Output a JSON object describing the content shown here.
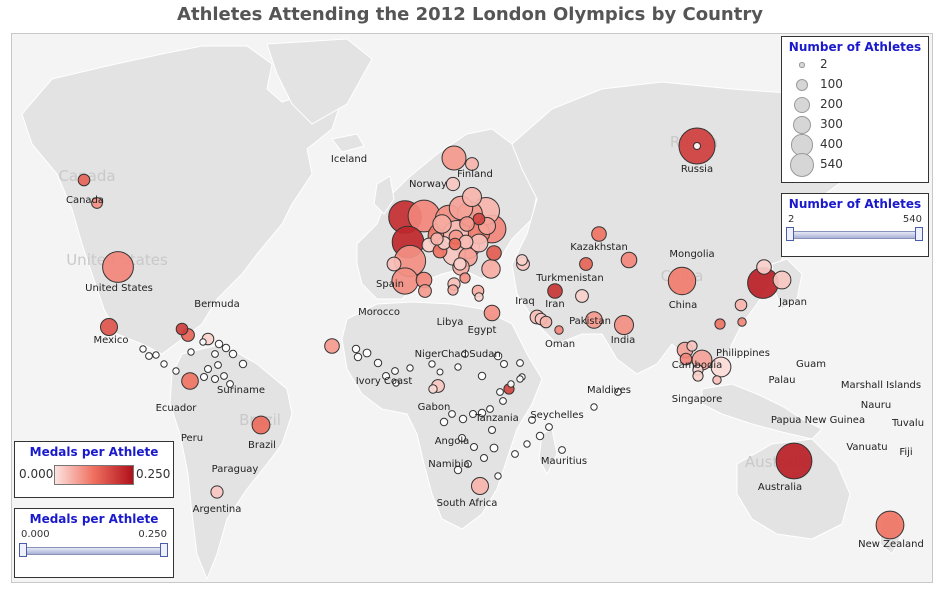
{
  "title": "Athletes Attending the 2012 London Olympics by Country",
  "colors": {
    "ocean": "#f4f4f4",
    "land": "#e3e3e3",
    "border": "#ffffff",
    "low": "#fce3e0",
    "mid": "#ef6f5f",
    "high": "#b0101b",
    "bubble_stroke": "#333333"
  },
  "watermarks": [
    "Canada",
    "United States",
    "Russia",
    "China",
    "Brazil",
    "Australia"
  ],
  "labels": [
    "Iceland",
    "Finland",
    "Norway",
    "Canada",
    "Russia",
    "Kazakhstan",
    "Mongolia",
    "United States",
    "Spain",
    "Turkmenistan",
    "Iran",
    "Iraq",
    "China",
    "Japan",
    "Bermuda",
    "Morocco",
    "Libya",
    "Egypt",
    "Pakistan",
    "India",
    "Mexico",
    "Oman",
    "Philippines",
    "Niger",
    "Chad",
    "Sudan",
    "Guam",
    "Cambodia",
    "Ivory Coast",
    "Suriname",
    "Palau",
    "Marshall Islands",
    "Maldives",
    "Ecuador",
    "Gabon",
    "Singapore",
    "Nauru",
    "Seychelles",
    "Papua New Guinea",
    "Tuvalu",
    "Tanzania",
    "Peru",
    "Brazil",
    "Angola",
    "Vanuatu",
    "Fiji",
    "Mauritius",
    "Namibia",
    "Paraguay",
    "Australia",
    "Argentina",
    "South Africa",
    "New Zealand"
  ],
  "size_legend": {
    "title": "Number of Athletes",
    "entries": [
      "2",
      "100",
      "200",
      "300",
      "400",
      "540"
    ],
    "values": [
      2,
      100,
      200,
      300,
      400,
      540
    ]
  },
  "athlete_filter": {
    "title": "Number of Athletes",
    "min": "2",
    "max": "540"
  },
  "color_legend": {
    "title": "Medals per Athlete",
    "min": "0.000",
    "max": "0.250"
  },
  "medal_filter": {
    "title": "Medals per Athlete",
    "min": "0.000",
    "max": "0.250"
  },
  "bubbles": [
    {
      "athletes": 540,
      "medals_per_athlete": 0.19
    },
    {
      "athletes": 430,
      "medals_per_athlete": 0.21
    },
    {
      "athletes": 400,
      "medals_per_athlete": 0.22
    },
    {
      "athletes": 290,
      "medals_per_athlete": 0.09
    },
    {
      "athletes": 300,
      "medals_per_athlete": 0.12
    },
    {
      "athletes": 410,
      "medals_per_athlete": 0.1
    },
    {
      "athletes": 380,
      "medals_per_athlete": 0.1
    },
    {
      "athletes": 390,
      "medals_per_athlete": 0.09
    },
    {
      "athletes": 290,
      "medals_per_athlete": 0.11
    },
    {
      "athletes": 280,
      "medals_per_athlete": 0.05
    },
    {
      "athletes": 280,
      "medals_per_athlete": 0.04
    },
    {
      "athletes": 230,
      "medals_per_athlete": 0.08
    },
    {
      "athletes": 200,
      "medals_per_athlete": 0.07
    },
    {
      "athletes": 190,
      "medals_per_athlete": 0.06
    },
    {
      "athletes": 210,
      "medals_per_athlete": 0.08
    },
    {
      "athletes": 180,
      "medals_per_athlete": 0.03
    },
    {
      "athletes": 160,
      "medals_per_athlete": 0.11
    },
    {
      "athletes": 120,
      "medals_per_athlete": 0.05
    },
    {
      "athletes": 110,
      "medals_per_athlete": 0.06
    },
    {
      "athletes": 110,
      "medals_per_athlete": 0.07
    },
    {
      "athletes": 100,
      "medals_per_athlete": 0.04
    },
    {
      "athletes": 80,
      "medals_per_athlete": 0.06
    },
    {
      "athletes": 90,
      "medals_per_athlete": 0.07
    },
    {
      "athletes": 70,
      "medals_per_athlete": 0.1
    },
    {
      "athletes": 60,
      "medals_per_athlete": 0.12
    },
    {
      "athletes": 50,
      "medals_per_athlete": 0.08
    },
    {
      "athletes": 40,
      "medals_per_athlete": 0.05
    },
    {
      "athletes": 30,
      "medals_per_athlete": 0.14
    },
    {
      "athletes": 25,
      "medals_per_athlete": 0.09
    },
    {
      "athletes": 50,
      "medals_per_athlete": 0.04
    },
    {
      "athletes": 100,
      "medals_per_athlete": 0.03
    },
    {
      "athletes": 60,
      "medals_per_athlete": 0.02
    },
    {
      "athletes": 45,
      "medals_per_athlete": 0.03
    },
    {
      "athletes": 30,
      "medals_per_athlete": 0.13
    },
    {
      "athletes": 40,
      "medals_per_athlete": 0.02
    },
    {
      "athletes": 50,
      "medals_per_athlete": 0.04
    },
    {
      "athletes": 35,
      "medals_per_athlete": 0.05
    },
    {
      "athletes": 50,
      "medals_per_athlete": 0.02
    },
    {
      "athletes": 60,
      "medals_per_athlete": 0.08
    },
    {
      "athletes": 30,
      "medals_per_athlete": 0.18
    },
    {
      "athletes": 300,
      "medals_per_athlete": 0.1
    },
    {
      "athletes": 50,
      "medals_per_athlete": 0.12
    },
    {
      "athletes": 20,
      "medals_per_athlete": 0.09
    },
    {
      "athletes": 10,
      "medals_per_athlete": 0.02
    },
    {
      "athletes": 380,
      "medals_per_athlete": 0.23
    },
    {
      "athletes": 90,
      "medals_per_athlete": 0.16
    },
    {
      "athletes": 120,
      "medals_per_athlete": 0.09
    },
    {
      "athletes": 40,
      "medals_per_athlete": 0.14
    },
    {
      "athletes": 30,
      "medals_per_athlete": 0.19
    },
    {
      "athletes": 30,
      "medals_per_athlete": 0.02
    },
    {
      "athletes": 530,
      "medals_per_athlete": 0.23
    },
    {
      "athletes": 300,
      "medals_per_athlete": 0.12
    },
    {
      "athletes": 100,
      "medals_per_athlete": 0.13
    },
    {
      "athletes": 85,
      "medals_per_athlete": 0.12
    },
    {
      "athletes": 35,
      "medals_per_athlete": 0.03
    },
    {
      "athletes": 90,
      "medals_per_athlete": 0.05
    },
    {
      "athletes": 20,
      "medals_per_athlete": 0.18
    },
    {
      "athletes": 60,
      "medals_per_athlete": 0.2
    },
    {
      "athletes": 10,
      "medals_per_athlete": 0.1
    },
    {
      "athletes": 110,
      "medals_per_athlete": 0.06
    },
    {
      "athletes": 40,
      "medals_per_athlete": 0.02
    },
    {
      "athletes": 30,
      "medals_per_athlete": 0.03
    },
    {
      "athletes": 25,
      "medals_per_athlete": 0.02
    },
    {
      "athletes": 85,
      "medals_per_athlete": 0.08
    },
    {
      "athletes": 70,
      "medals_per_athlete": 0.1
    },
    {
      "athletes": 60,
      "medals_per_athlete": 0.15
    },
    {
      "athletes": 40,
      "medals_per_athlete": 0.14
    },
    {
      "athletes": 30,
      "medals_per_athlete": 0.05
    },
    {
      "athletes": 50,
      "medals_per_athlete": 0.04
    },
    {
      "athletes": 40,
      "medals_per_athlete": 0.03
    },
    {
      "athletes": 40,
      "medals_per_athlete": 0.08
    },
    {
      "athletes": 40,
      "medals_per_athlete": 0.03
    },
    {
      "athletes": 20,
      "medals_per_athlete": 0.06
    },
    {
      "athletes": 35,
      "medals_per_athlete": 0.02
    },
    {
      "athletes": 260,
      "medals_per_athlete": 0.09
    },
    {
      "athletes": 35,
      "medals_per_athlete": 0.04
    },
    {
      "athletes": 30,
      "medals_per_athlete": 0.06
    },
    {
      "athletes": 70,
      "medals_per_athlete": 0.09
    },
    {
      "athletes": 70,
      "medals_per_athlete": 0.07
    },
    {
      "athletes": 30,
      "medals_per_athlete": 0.1
    },
    {
      "athletes": 20,
      "medals_per_athlete": 0.12
    },
    {
      "athletes": 10,
      "medals_per_athlete": 0.1
    },
    {
      "athletes": 30,
      "medals_per_athlete": 0.05
    },
    {
      "athletes": 20,
      "medals_per_athlete": 0.03
    },
    {
      "athletes": 130,
      "medals_per_athlete": 0.07
    },
    {
      "athletes": 20,
      "medals_per_athlete": 0.01
    },
    {
      "athletes": 20,
      "medals_per_athlete": 0.02
    },
    {
      "athletes": 130,
      "medals_per_athlete": 0.01
    },
    {
      "athletes": 10,
      "medals_per_athlete": 0.04
    },
    {
      "athletes": 10,
      "medals_per_athlete": 0.01
    },
    {
      "athletes": 60,
      "medals_per_athlete": 0.08
    },
    {
      "athletes": 6,
      "medals_per_athlete": 0.0
    },
    {
      "athletes": 6,
      "medals_per_athlete": 0.0
    },
    {
      "athletes": 8,
      "medals_per_athlete": 0.0
    },
    {
      "athletes": 6,
      "medals_per_athlete": 0.0
    },
    {
      "athletes": 4,
      "medals_per_athlete": 0.0
    },
    {
      "athletes": 5,
      "medals_per_athlete": 0.0
    },
    {
      "athletes": 3,
      "medals_per_athlete": 0.0
    },
    {
      "athletes": 3,
      "medals_per_athlete": 0.0
    },
    {
      "athletes": 3,
      "medals_per_athlete": 0.0
    },
    {
      "athletes": 2,
      "medals_per_athlete": 0.0
    },
    {
      "athletes": 3,
      "medals_per_athlete": 0.0
    },
    {
      "athletes": 4,
      "medals_per_athlete": 0.0
    },
    {
      "athletes": 6,
      "medals_per_athlete": 0.0
    },
    {
      "athletes": 7,
      "medals_per_athlete": 0.0
    },
    {
      "athletes": 5,
      "medals_per_athlete": 0.0
    },
    {
      "athletes": 4,
      "medals_per_athlete": 0.0
    },
    {
      "athletes": 3,
      "medals_per_athlete": 0.0
    },
    {
      "athletes": 3,
      "medals_per_athlete": 0.0
    },
    {
      "athletes": 3,
      "medals_per_athlete": 0.0
    },
    {
      "athletes": 4,
      "medals_per_athlete": 0.0
    },
    {
      "athletes": 4,
      "medals_per_athlete": 0.0
    },
    {
      "athletes": 4,
      "medals_per_athlete": 0.0
    },
    {
      "athletes": 6,
      "medals_per_athlete": 0.0
    },
    {
      "athletes": 5,
      "medals_per_athlete": 0.0
    },
    {
      "athletes": 6,
      "medals_per_athlete": 0.0
    },
    {
      "athletes": 4,
      "medals_per_athlete": 0.0
    },
    {
      "athletes": 6,
      "medals_per_athlete": 0.0
    },
    {
      "athletes": 5,
      "medals_per_athlete": 0.0
    },
    {
      "athletes": 5,
      "medals_per_athlete": 0.0
    },
    {
      "athletes": 5,
      "medals_per_athlete": 0.0
    },
    {
      "athletes": 8,
      "medals_per_athlete": 0.0
    },
    {
      "athletes": 5,
      "medals_per_athlete": 0.0
    },
    {
      "athletes": 4,
      "medals_per_athlete": 0.0
    },
    {
      "athletes": 6,
      "medals_per_athlete": 0.0
    },
    {
      "athletes": 3,
      "medals_per_athlete": 0.0
    },
    {
      "athletes": 4,
      "medals_per_athlete": 0.0
    },
    {
      "athletes": 3,
      "medals_per_athlete": 0.0
    },
    {
      "athletes": 4,
      "medals_per_athlete": 0.0
    },
    {
      "athletes": 6,
      "medals_per_athlete": 0.0
    },
    {
      "athletes": 4,
      "medals_per_athlete": 0.0
    },
    {
      "athletes": 4,
      "medals_per_athlete": 0.0
    },
    {
      "athletes": 3,
      "medals_per_athlete": 0.0
    },
    {
      "athletes": 4,
      "medals_per_athlete": 0.0
    },
    {
      "athletes": 4,
      "medals_per_athlete": 0.0
    },
    {
      "athletes": 3,
      "medals_per_athlete": 0.0
    },
    {
      "athletes": 3,
      "medals_per_athlete": 0.0
    },
    {
      "athletes": 3,
      "medals_per_athlete": 0.0
    },
    {
      "athletes": 3,
      "medals_per_athlete": 0.0
    },
    {
      "athletes": 3,
      "medals_per_athlete": 0.0
    },
    {
      "athletes": 3,
      "medals_per_athlete": 0.0
    },
    {
      "athletes": 6,
      "medals_per_athlete": 0.0
    },
    {
      "athletes": 6,
      "medals_per_athlete": 0.0
    },
    {
      "athletes": 6,
      "medals_per_athlete": 0.0
    },
    {
      "athletes": 6,
      "medals_per_athlete": 0.0
    },
    {
      "athletes": 4,
      "medals_per_athlete": 0.0
    },
    {
      "athletes": 4,
      "medals_per_athlete": 0.0
    },
    {
      "athletes": 4,
      "medals_per_athlete": 0.0
    },
    {
      "athletes": 4,
      "medals_per_athlete": 0.0
    },
    {
      "athletes": 5,
      "medals_per_athlete": 0.0
    },
    {
      "athletes": 5,
      "medals_per_athlete": 0.0
    },
    {
      "athletes": 5,
      "medals_per_athlete": 0.0
    },
    {
      "athletes": 5,
      "medals_per_athlete": 0.0
    }
  ]
}
